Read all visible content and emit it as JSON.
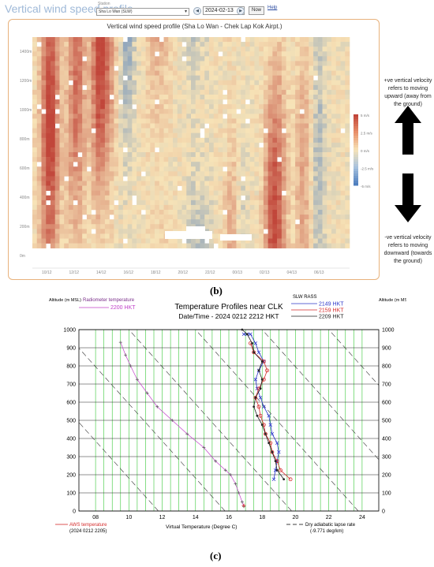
{
  "toolbar": {
    "app_title": "Vertical wind speed profile",
    "station_label": "Station",
    "station_value": "Sha Lo Wan (SLW)",
    "date_value": "2024-02-13",
    "prev_symbol": "◀",
    "next_symbol": "▶",
    "now_label": "Now",
    "help_label": "Help"
  },
  "panel_b": {
    "chart_data": {
      "type": "heatmap",
      "title": "Vertical wind speed profile (Sha Lo Wan - Chek Lap Kok Airpt.)",
      "y_ticks": [
        "1400m",
        "1200m",
        "1000m",
        "800m",
        "600m",
        "400m",
        "200m",
        "0m"
      ],
      "x_ticks": [
        "10/12",
        "12/12",
        "14/12",
        "16/12",
        "18/12",
        "20/12",
        "22/12",
        "00/13",
        "02/13",
        "04/13",
        "06/13"
      ],
      "colorbar_ticks": [
        "5 m/s",
        "2.5 m/s",
        "0 m/s",
        "-2.5 m/s",
        "-5 m/s"
      ],
      "colorbar_colors": [
        "#c1463a",
        "#e9916b",
        "#f7e3b7",
        "#a9c3de",
        "#4f7fbf"
      ]
    },
    "annotation_up": "+ve vertical velocity refers to moving upward (away from the ground)",
    "annotation_down": "-ve vertical velocity refers to moving downward (towards the ground)",
    "caption": "(b)"
  },
  "panel_c": {
    "chart_data": {
      "type": "line",
      "title": "Temperature Profiles near CLK",
      "subtitle": "Date/Time - 2024 0212 2212 HKT",
      "xlabel": "Virtual Temperature (Degree C)",
      "ylabel_left": "Altitude (m MSL)",
      "ylabel_right": "Altitude (m MSL)",
      "xlim": [
        7,
        25
      ],
      "ylim": [
        0,
        1000
      ],
      "x_ticks": [
        "08",
        "10",
        "12",
        "14",
        "16",
        "18",
        "20",
        "22",
        "24"
      ],
      "y_ticks": [
        "0",
        "100",
        "200",
        "300",
        "400",
        "500",
        "600",
        "700",
        "800",
        "900",
        "1000"
      ],
      "legend_left_title": "Radiometer temperature",
      "legend_left_entry": "2200 HKT",
      "legend_right_title": "SLW RASS",
      "legend_bottom_left": "AWS temperature (2024 0212 2205)",
      "legend_bottom_right": "Dry adiabatic lapse rate (-9.771 deg/km)",
      "series": [
        {
          "name": "2149 HKT",
          "color": "#2b36c8",
          "x": [
            18.7,
            18.8,
            18.9,
            19.0,
            18.9,
            18.6,
            18.5,
            18.4,
            18.1,
            17.9,
            17.7,
            17.6,
            17.8,
            18.1,
            17.8,
            17.6,
            17.3,
            17.1,
            16.9
          ],
          "y": [
            175,
            225,
            275,
            325,
            375,
            425,
            475,
            525,
            575,
            625,
            675,
            725,
            775,
            825,
            875,
            925,
            975,
            975,
            975
          ]
        },
        {
          "name": "2159 HKT",
          "color": "#d42a2a",
          "x": [
            19.7,
            19.1,
            18.9,
            18.6,
            18.5,
            18.2,
            18.1,
            17.9,
            17.8,
            17.6,
            17.8,
            18.1,
            18.3,
            18.1,
            17.5,
            17.3
          ],
          "y": [
            175,
            225,
            275,
            325,
            375,
            425,
            475,
            525,
            575,
            625,
            675,
            725,
            775,
            825,
            875,
            925
          ]
        },
        {
          "name": "2209 HKT",
          "color": "#222222",
          "x": [
            19.3,
            18.9,
            18.8,
            18.6,
            18.4,
            18.2,
            18.0,
            17.7,
            17.5,
            17.6,
            17.9,
            18.0,
            17.8,
            18.0,
            17.5,
            17.4,
            17.1,
            16.8
          ],
          "y": [
            175,
            225,
            275,
            325,
            375,
            425,
            475,
            525,
            575,
            625,
            675,
            725,
            775,
            825,
            875,
            925,
            975,
            1000
          ]
        },
        {
          "name": "2200 HKT",
          "color": "#c040c8",
          "x": [
            16.9,
            16.8,
            16.6,
            16.4,
            16.1,
            15.8,
            15.2,
            14.5,
            13.5,
            12.6,
            11.7,
            11.1,
            10.5,
            10.1,
            9.8,
            9.5
          ],
          "y": [
            25,
            50,
            100,
            150,
            200,
            225,
            275,
            350,
            425,
            500,
            575,
            650,
            725,
            800,
            860,
            930
          ]
        }
      ],
      "aws_point": {
        "x": 16.9,
        "y": 30
      },
      "adiabat_offsets": [
        -6,
        -2,
        2,
        6,
        10,
        14
      ]
    },
    "caption": "(c)"
  }
}
